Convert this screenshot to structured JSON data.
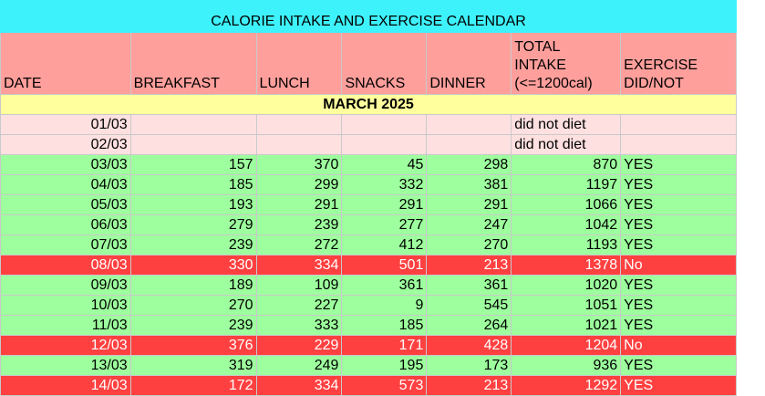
{
  "title": "CALORIE INTAKE AND EXERCISE CALENDAR",
  "headers": {
    "date": "DATE",
    "breakfast": "BREAKFAST",
    "lunch": "LUNCH",
    "snacks": "SNACKS",
    "dinner": "DINNER",
    "total_line1": "TOTAL",
    "total_line2": "INTAKE",
    "total_line3": "(<=1200cal)",
    "exercise_line1": "EXERCISE",
    "exercise_line2": "DID/NOT"
  },
  "month": "MARCH 2025",
  "colors": {
    "title_bg": "#3ef2fb",
    "header_bg": "#ff9f9c",
    "month_bg": "#ffff9e",
    "no_diet_bg": "#ffe0e0",
    "ok_bg": "#9dff9d",
    "over_bg": "#ff4040"
  },
  "rows": [
    {
      "date": "01/03",
      "breakfast": "",
      "lunch": "",
      "snacks": "",
      "dinner": "",
      "total": "did not diet",
      "exercise": "",
      "status": "pink"
    },
    {
      "date": "02/03",
      "breakfast": "",
      "lunch": "",
      "snacks": "",
      "dinner": "",
      "total": "did not diet",
      "exercise": "",
      "status": "pink"
    },
    {
      "date": "03/03",
      "breakfast": "157",
      "lunch": "370",
      "snacks": "45",
      "dinner": "298",
      "total": "870",
      "exercise": "YES",
      "status": "green"
    },
    {
      "date": "04/03",
      "breakfast": "185",
      "lunch": "299",
      "snacks": "332",
      "dinner": "381",
      "total": "1197",
      "exercise": "YES",
      "status": "green"
    },
    {
      "date": "05/03",
      "breakfast": "193",
      "lunch": "291",
      "snacks": "291",
      "dinner": "291",
      "total": "1066",
      "exercise": "YES",
      "status": "green"
    },
    {
      "date": "06/03",
      "breakfast": "279",
      "lunch": "239",
      "snacks": "277",
      "dinner": "247",
      "total": "1042",
      "exercise": "YES",
      "status": "green"
    },
    {
      "date": "07/03",
      "breakfast": "239",
      "lunch": "272",
      "snacks": "412",
      "dinner": "270",
      "total": "1193",
      "exercise": "YES",
      "status": "green"
    },
    {
      "date": "08/03",
      "breakfast": "330",
      "lunch": "334",
      "snacks": "501",
      "dinner": "213",
      "total": "1378",
      "exercise": "No",
      "status": "red"
    },
    {
      "date": "09/03",
      "breakfast": "189",
      "lunch": "109",
      "snacks": "361",
      "dinner": "361",
      "total": "1020",
      "exercise": "YES",
      "status": "green"
    },
    {
      "date": "10/03",
      "breakfast": "270",
      "lunch": "227",
      "snacks": "9",
      "dinner": "545",
      "total": "1051",
      "exercise": "YES",
      "status": "green"
    },
    {
      "date": "11/03",
      "breakfast": "239",
      "lunch": "333",
      "snacks": "185",
      "dinner": "264",
      "total": "1021",
      "exercise": "YES",
      "status": "green"
    },
    {
      "date": "12/03",
      "breakfast": "376",
      "lunch": "229",
      "snacks": "171",
      "dinner": "428",
      "total": "1204",
      "exercise": "No",
      "status": "red"
    },
    {
      "date": "13/03",
      "breakfast": "319",
      "lunch": "249",
      "snacks": "195",
      "dinner": "173",
      "total": "936",
      "exercise": "YES",
      "status": "green"
    },
    {
      "date": "14/03",
      "breakfast": "172",
      "lunch": "334",
      "snacks": "573",
      "dinner": "213",
      "total": "1292",
      "exercise": "YES",
      "status": "red"
    }
  ]
}
